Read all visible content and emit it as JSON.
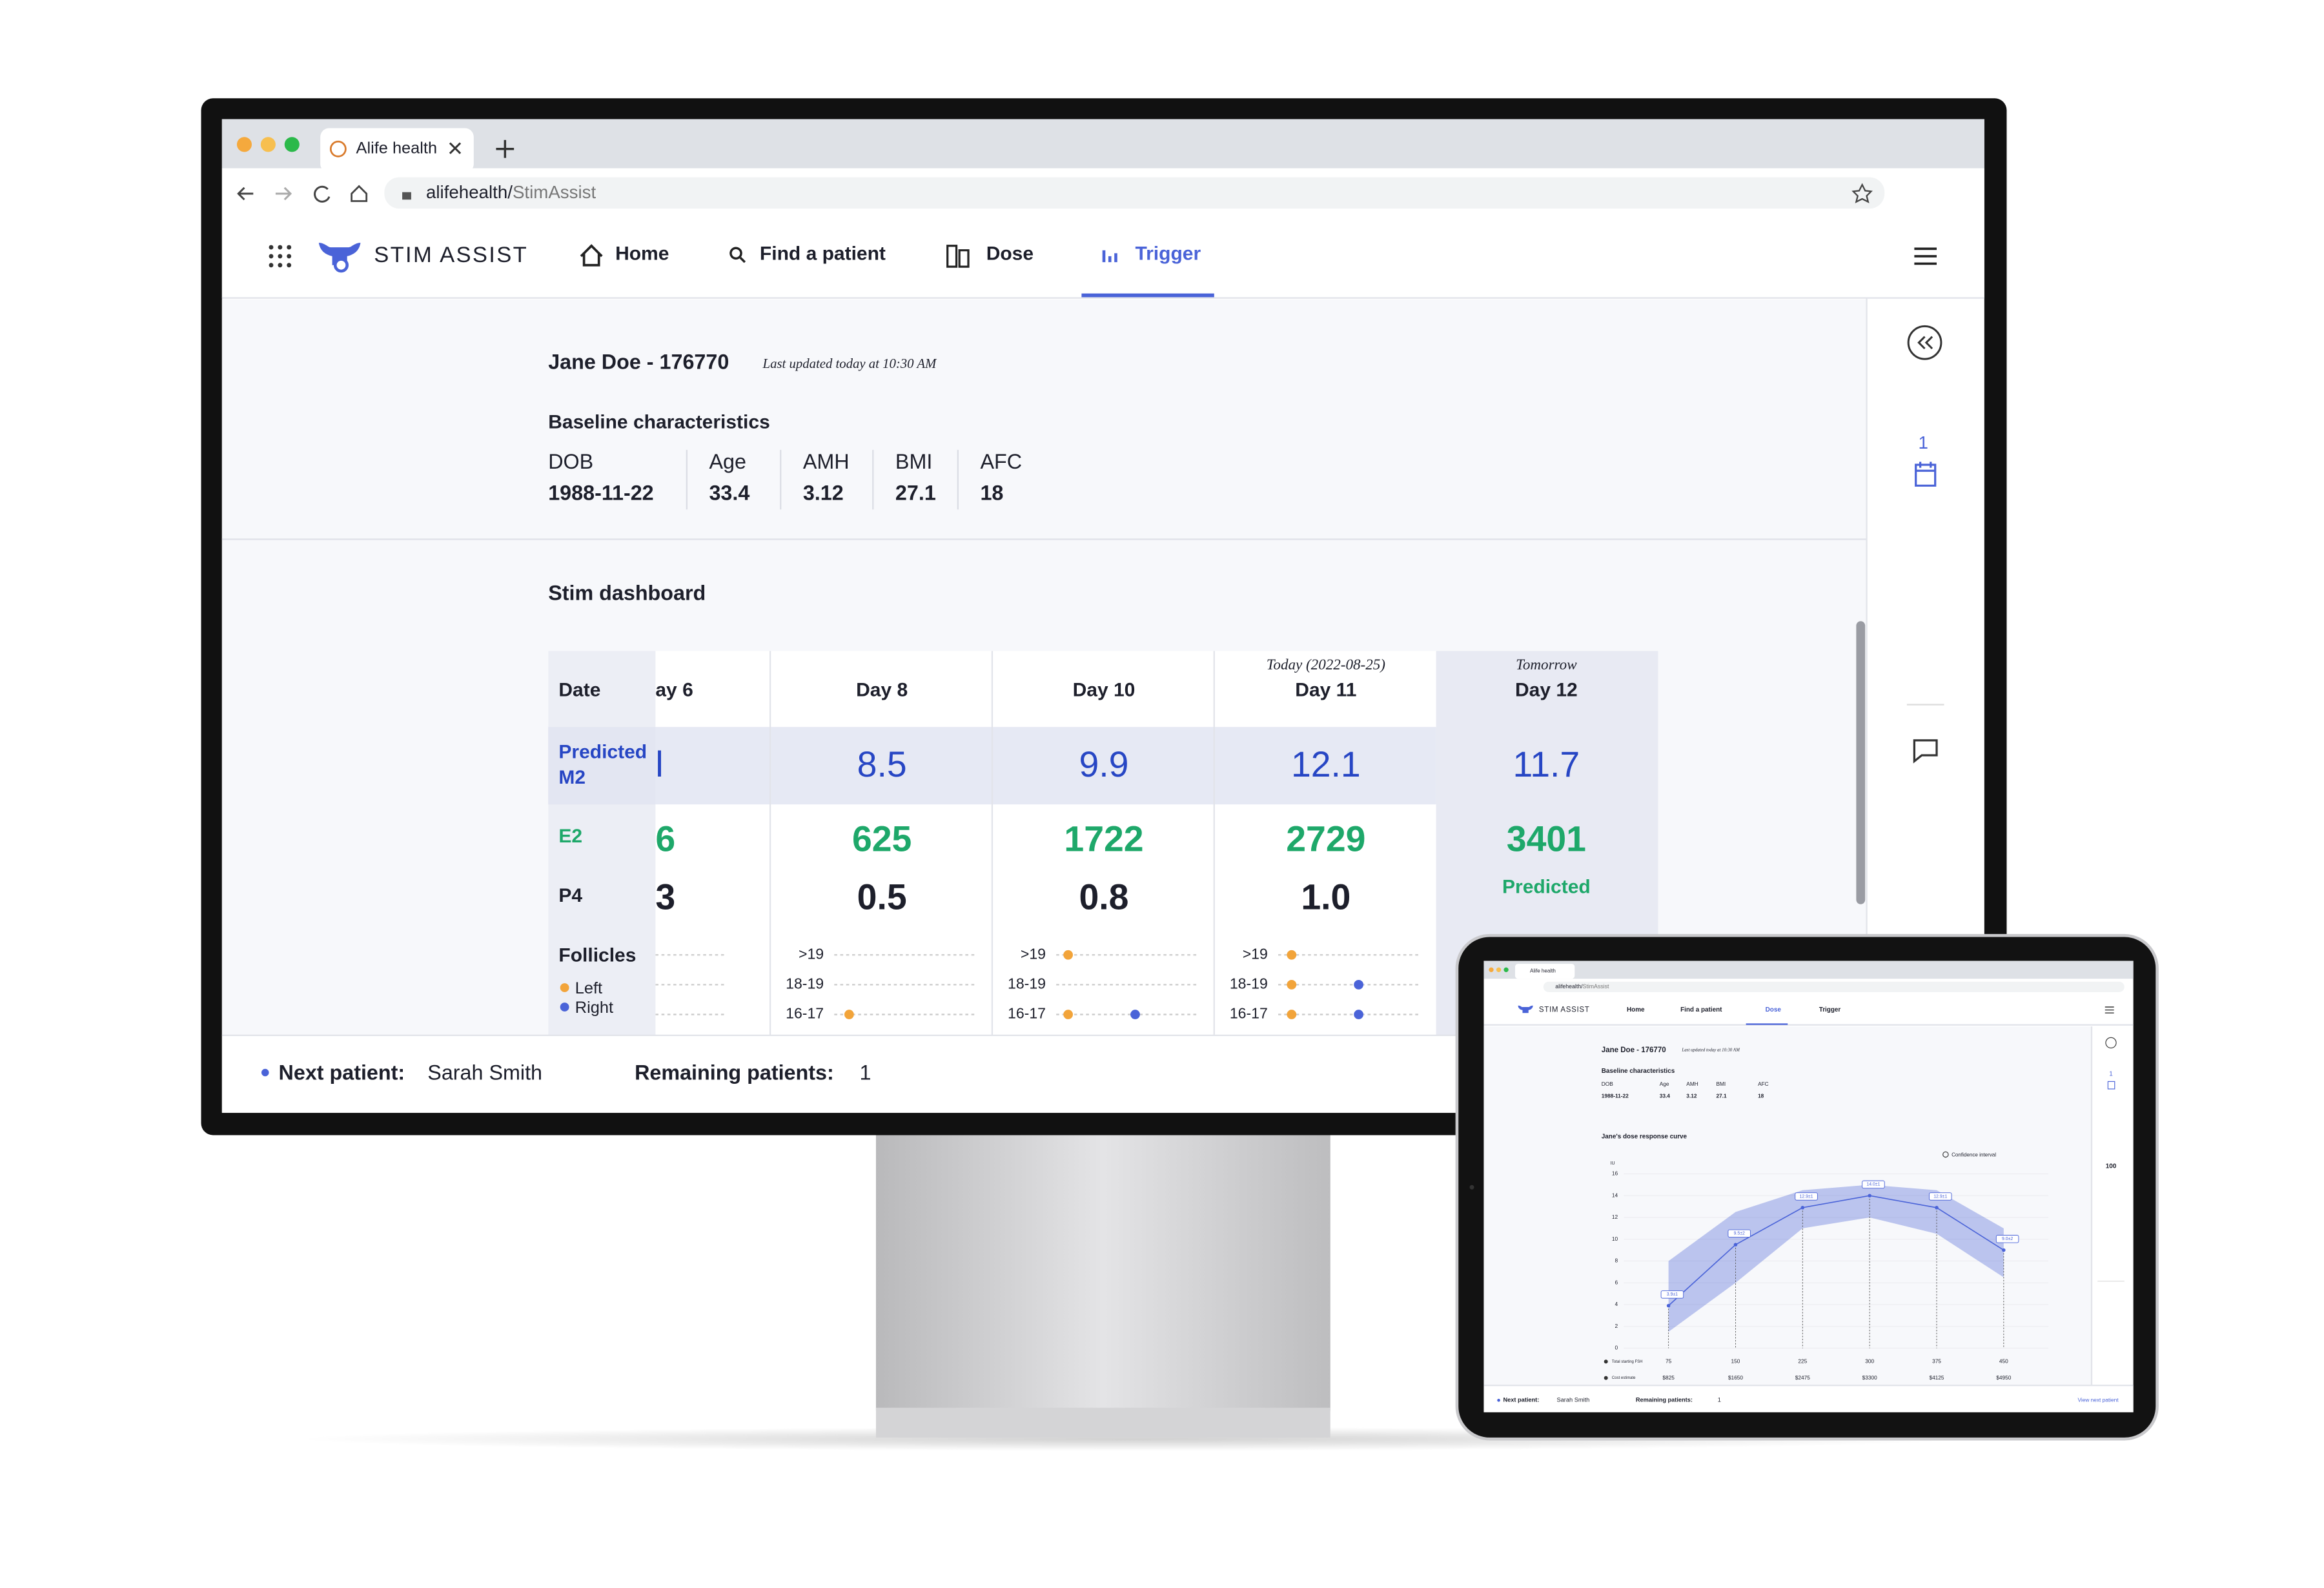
{
  "browser": {
    "tab_title": "Alife health",
    "url_host": "alifehealth/",
    "url_path": "StimAssist"
  },
  "nav": {
    "brand": "STIM ASSIST",
    "items": [
      "Home",
      "Find a patient",
      "Dose",
      "Trigger"
    ]
  },
  "patient": {
    "name": "Jane Doe - 176770",
    "updated": "Last updated today at 10:30 AM"
  },
  "baseline": {
    "title": "Baseline characteristics",
    "fields": [
      {
        "label": "DOB",
        "value": "1988-11-22"
      },
      {
        "label": "Age",
        "value": "33.4"
      },
      {
        "label": "AMH",
        "value": "3.12"
      },
      {
        "label": "BMI",
        "value": "27.1"
      },
      {
        "label": "AFC",
        "value": "18"
      }
    ]
  },
  "dashboard": {
    "title": "Stim dashboard",
    "row_labels": {
      "date": "Date",
      "m2": "Predicted M2",
      "e2": "E2",
      "p4": "P4",
      "follicles": "Follicles"
    },
    "legend": [
      "Left",
      "Right"
    ],
    "follicle_sizes": [
      ">19",
      "18-19",
      "16-17"
    ],
    "columns": [
      {
        "day": "ay 6",
        "m2": "l",
        "e2": "6",
        "p4": "3"
      },
      {
        "day": "Day 8",
        "m2": "8.5",
        "e2": "625",
        "p4": "0.5"
      },
      {
        "day": "Day 10",
        "m2": "9.9",
        "e2": "1722",
        "p4": "0.8"
      },
      {
        "note": "Today (2022-08-25)",
        "day": "Day 11",
        "m2": "12.1",
        "e2": "2729",
        "p4": "1.0"
      },
      {
        "note": "Tomorrow",
        "day": "Day 12",
        "m2": "11.7",
        "e2": "3401",
        "p4_note": "Predicted"
      }
    ]
  },
  "footer": {
    "next_label": "Next patient:",
    "next_name": "Sarah Smith",
    "remaining_label": "Remaining patients:",
    "remaining": "1",
    "view_next": "View next patient"
  },
  "sidebar": {
    "cycle": "1",
    "count": "100"
  },
  "tablet_chart": {
    "type": "line",
    "title": "Jane's dose response curve",
    "legend": "Confidence interval",
    "y_unit": "IU",
    "color": "#4a63d8",
    "x": [
      75,
      150,
      225,
      300,
      375,
      450
    ],
    "values": [
      3.9,
      9.5,
      12.9,
      14.0,
      12.9,
      9.0
    ],
    "value_labels": [
      "3.9±1",
      "9.5±2",
      "12.9±1",
      "14.0±1",
      "12.9±1",
      "9.0±2"
    ],
    "ci_lower": [
      1.5,
      6,
      11,
      12,
      10.5,
      6.5
    ],
    "ci_upper": [
      8,
      12.5,
      14.5,
      15,
      14.5,
      11
    ],
    "xlim": [
      25,
      500
    ],
    "ylim": [
      0,
      16
    ],
    "yticks": [
      0,
      2,
      4,
      6,
      8,
      10,
      12,
      14,
      16
    ],
    "row_labels": [
      "Total starting FSH",
      "Cost estimate"
    ],
    "costs": [
      "$825",
      "$1650",
      "$2475",
      "$3300",
      "$4125",
      "$4950"
    ]
  }
}
